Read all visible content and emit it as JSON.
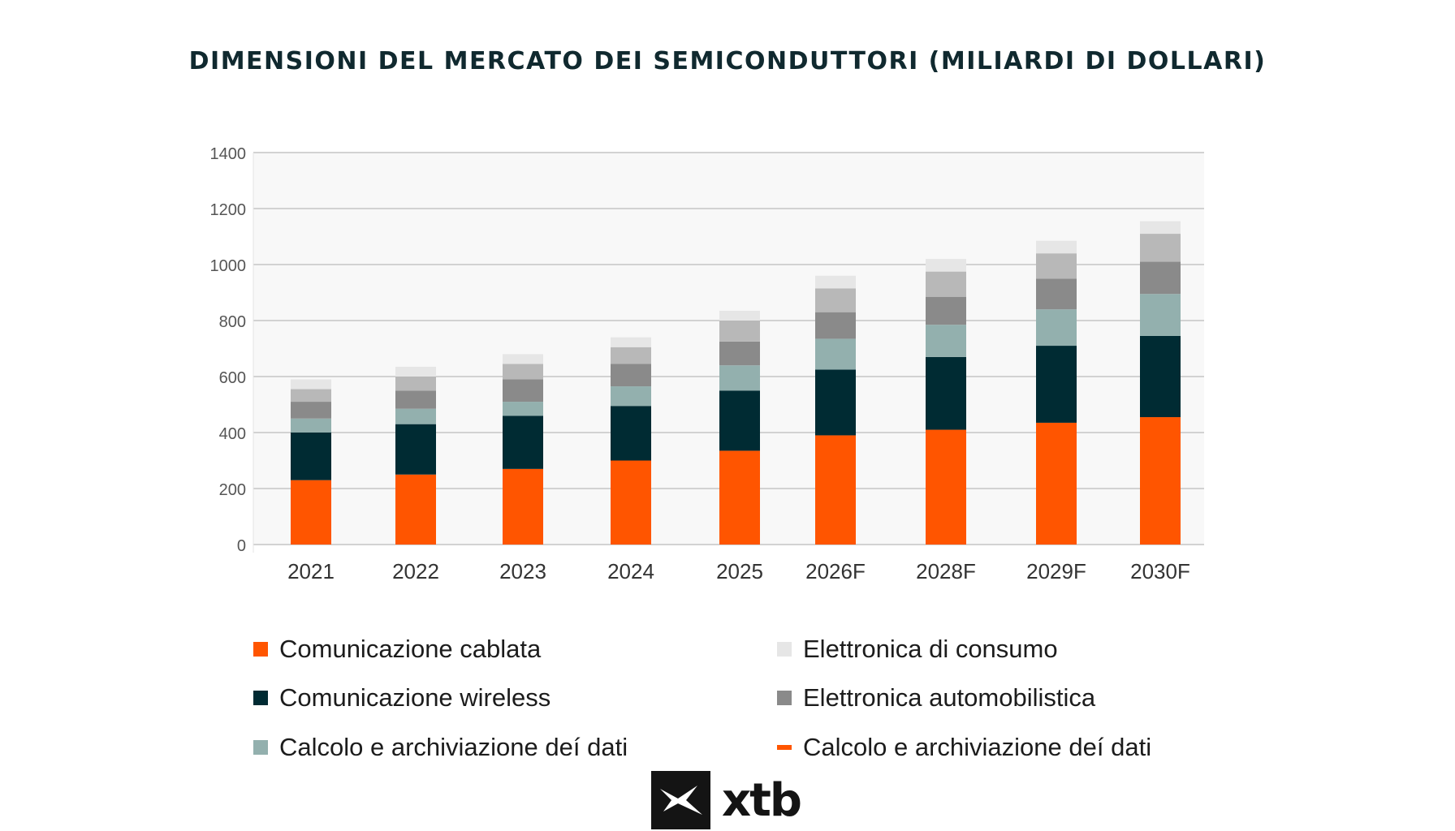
{
  "chart_data": {
    "type": "bar",
    "stacked": true,
    "title": "DIMENSIONI DEL MERCATO DEI SEMICONDUTTORI (MILIARDI DI DOLLARI)",
    "xlabel": "",
    "ylabel": "",
    "ylim": [
      0,
      1400
    ],
    "yticks": [
      0,
      200,
      400,
      600,
      800,
      1000,
      1200,
      1400
    ],
    "grid": true,
    "legend_placement": "bottom",
    "categories": [
      "2021",
      "2022",
      "2023",
      "2024",
      "2025",
      "2026F",
      "2028F",
      "2029F",
      "2030F"
    ],
    "series": [
      {
        "name": "Comunicazione cablata",
        "color": "#ff5500",
        "values": [
          230,
          250,
          270,
          300,
          335,
          390,
          410,
          435,
          455
        ]
      },
      {
        "name": "Comunicazione wireless",
        "color": "#002b33",
        "values": [
          170,
          180,
          190,
          195,
          215,
          235,
          260,
          275,
          290
        ]
      },
      {
        "name": "Calcolo e archiviazione deí dati",
        "color": "#93b0ae",
        "values": [
          50,
          55,
          50,
          70,
          90,
          110,
          115,
          130,
          150
        ]
      },
      {
        "name": "Elettronica automobilistica",
        "color": "#8a8a8a",
        "values": [
          60,
          65,
          80,
          80,
          85,
          95,
          100,
          110,
          115
        ]
      },
      {
        "name": "Calcolo e archiviazione deí  dati",
        "color": "#b8b8b8",
        "values": [
          45,
          50,
          55,
          60,
          75,
          85,
          90,
          90,
          100
        ]
      },
      {
        "name": "Elettronica di consumo",
        "color": "#e6e6e6",
        "values": [
          35,
          35,
          35,
          35,
          35,
          45,
          45,
          45,
          45
        ]
      }
    ],
    "legend": [
      {
        "label": "Comunicazione cablata",
        "color": "#ff5500",
        "marker": "square"
      },
      {
        "label": "Comunicazione wireless",
        "color": "#002b33",
        "marker": "square"
      },
      {
        "label": "Calcolo e archiviazione deí dati",
        "color": "#93b0ae",
        "marker": "square"
      },
      {
        "label": "Elettronica di consumo",
        "color": "#e6e6e6",
        "marker": "square"
      },
      {
        "label": "Elettronica automobilistica",
        "color": "#8a8a8a",
        "marker": "square"
      },
      {
        "label": "Calcolo e archiviazione deí  dati",
        "color": "#ff5500",
        "marker": "dash"
      }
    ]
  },
  "logo": {
    "text": "xtb"
  }
}
